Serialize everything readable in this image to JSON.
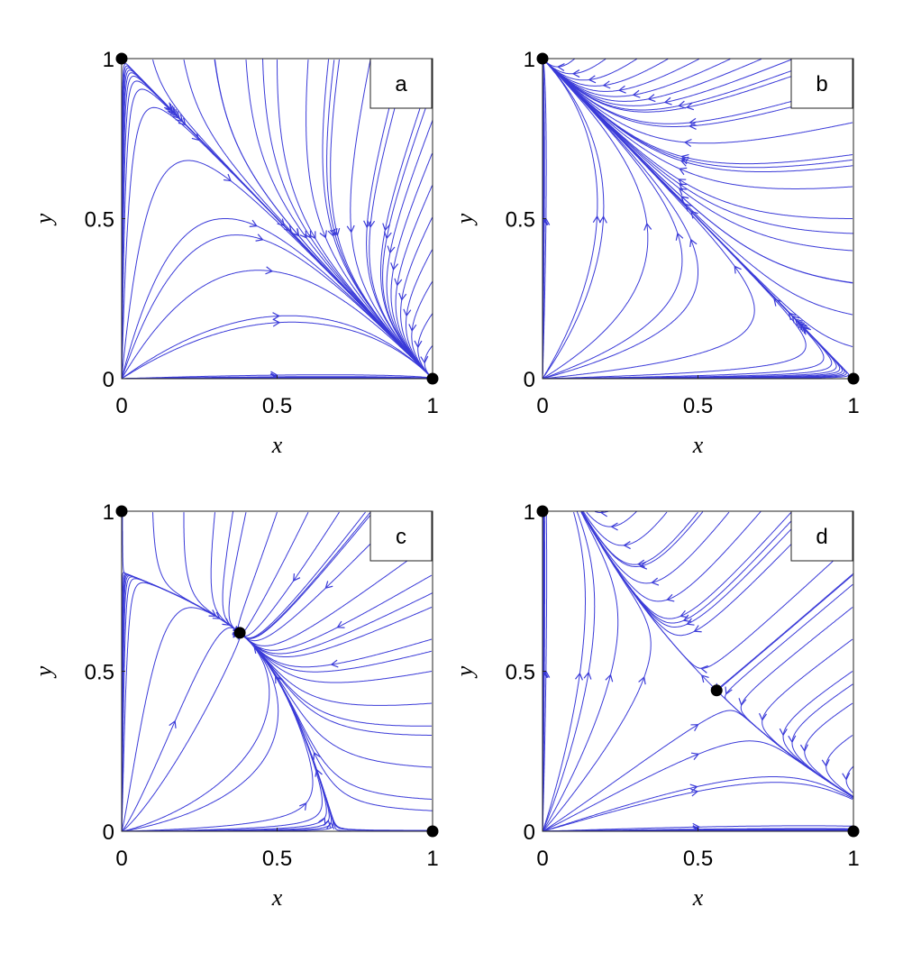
{
  "chart_data": [
    {
      "type": "scatter",
      "label": "a",
      "xlabel": "x",
      "ylabel": "y",
      "x": [
        0,
        1
      ],
      "values": [
        1,
        0
      ],
      "color": "#000000",
      "xlim": [
        0,
        1
      ],
      "ylim": [
        0,
        1
      ],
      "xticks": [
        0,
        0.5,
        1
      ],
      "yticks": [
        0,
        0.5,
        1
      ]
    },
    {
      "type": "scatter",
      "label": "b",
      "xlabel": "x",
      "ylabel": "y",
      "x": [
        0,
        1
      ],
      "values": [
        1,
        0
      ],
      "color": "#000000",
      "xlim": [
        0,
        1
      ],
      "ylim": [
        0,
        1
      ],
      "xticks": [
        0,
        0.5,
        1
      ],
      "yticks": [
        0,
        0.5,
        1
      ]
    },
    {
      "type": "scatter",
      "label": "c",
      "xlabel": "x",
      "ylabel": "y",
      "x": [
        0,
        1,
        0.38
      ],
      "values": [
        1,
        0,
        0.62
      ],
      "color": "#000000",
      "xlim": [
        0,
        1
      ],
      "ylim": [
        0,
        1
      ],
      "xticks": [
        0,
        0.5,
        1
      ],
      "yticks": [
        0,
        0.5,
        1
      ]
    },
    {
      "type": "scatter",
      "label": "d",
      "xlabel": "x",
      "ylabel": "y",
      "x": [
        0,
        1,
        0.56
      ],
      "values": [
        1,
        0,
        0.44
      ],
      "color": "#000000",
      "xlim": [
        0,
        1
      ],
      "ylim": [
        0,
        1
      ],
      "xticks": [
        0,
        0.5,
        1
      ],
      "yticks": [
        0,
        0.5,
        1
      ]
    }
  ]
}
